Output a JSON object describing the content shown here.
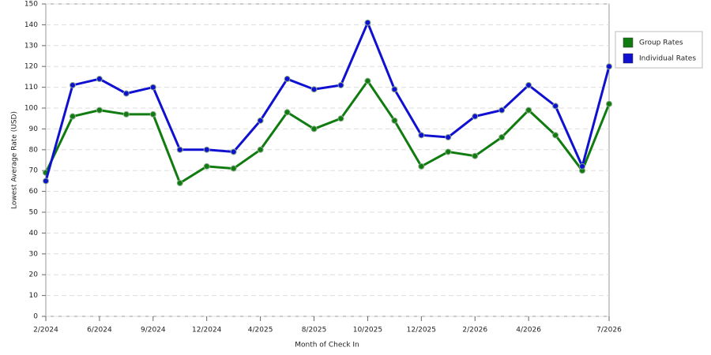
{
  "chart_data": {
    "type": "line",
    "x_label": "Month of Check In",
    "y_label": "Lowest Average Rate (USD)",
    "categories": [
      "2/2024",
      null,
      "6/2024",
      null,
      "9/2024",
      null,
      "12/2024",
      null,
      "4/2025",
      null,
      "8/2025",
      null,
      "10/2025",
      null,
      "12/2025",
      null,
      "2/2026",
      null,
      "4/2026",
      null,
      null,
      "7/2026"
    ],
    "series": [
      {
        "name": "Group Rates",
        "color": "#107c10",
        "values": [
          69,
          96,
          99,
          97,
          97,
          64,
          72,
          71,
          80,
          98,
          90,
          95,
          113,
          94,
          72,
          79,
          77,
          86,
          99,
          87,
          70,
          102
        ]
      },
      {
        "name": "Individual Rates",
        "color": "#1010d0",
        "values": [
          65,
          111,
          114,
          107,
          110,
          80,
          80,
          79,
          94,
          114,
          109,
          111,
          141,
          109,
          87,
          86,
          96,
          99,
          111,
          101,
          72,
          120
        ]
      }
    ],
    "ylim": [
      0,
      150
    ],
    "yticks": [
      0,
      10,
      20,
      30,
      40,
      50,
      60,
      70,
      80,
      90,
      100,
      110,
      120,
      130,
      140,
      150
    ],
    "grid": true,
    "legend": "right"
  }
}
